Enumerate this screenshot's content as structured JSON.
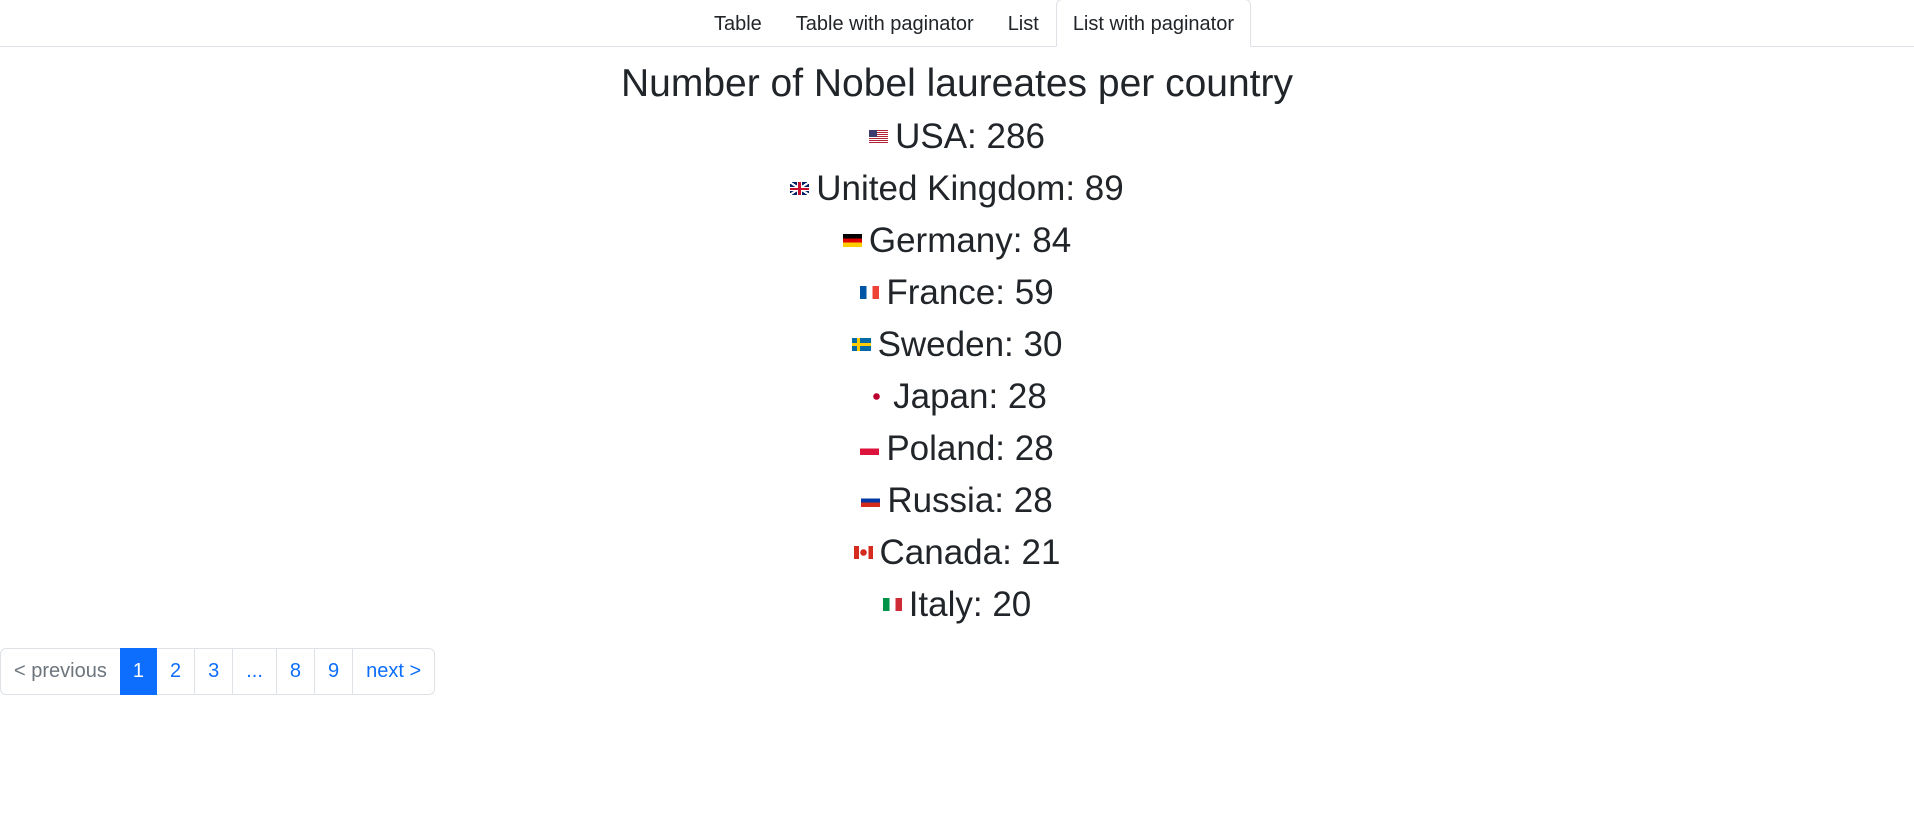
{
  "tabs": [
    {
      "label": "Table",
      "active": false
    },
    {
      "label": "Table with paginator",
      "active": false
    },
    {
      "label": "List",
      "active": false
    },
    {
      "label": "List with paginator",
      "active": true
    }
  ],
  "main": {
    "title": "Number of Nobel laureates per country",
    "items": [
      {
        "text": "USA: 286",
        "flag": "us-flag-icon"
      },
      {
        "text": "United Kingdom: 89",
        "flag": "uk-flag-icon"
      },
      {
        "text": "Germany: 84",
        "flag": "germany-flag-icon"
      },
      {
        "text": "France: 59",
        "flag": "france-flag-icon"
      },
      {
        "text": "Sweden: 30",
        "flag": "sweden-flag-icon"
      },
      {
        "text": "Japan: 28",
        "flag": "japan-flag-icon"
      },
      {
        "text": "Poland: 28",
        "flag": "poland-flag-icon"
      },
      {
        "text": "Russia: 28",
        "flag": "russia-flag-icon"
      },
      {
        "text": "Canada: 21",
        "flag": "canada-flag-icon"
      },
      {
        "text": "Italy: 20",
        "flag": "italy-flag-icon"
      }
    ]
  },
  "pagination": {
    "previous": "< previous",
    "pages": [
      "1",
      "2",
      "3",
      "...",
      "8",
      "9"
    ],
    "current": "1",
    "next": "next >"
  },
  "colors": {
    "accent": "#0d6efd",
    "text": "#212529",
    "border": "#dee2e6"
  }
}
